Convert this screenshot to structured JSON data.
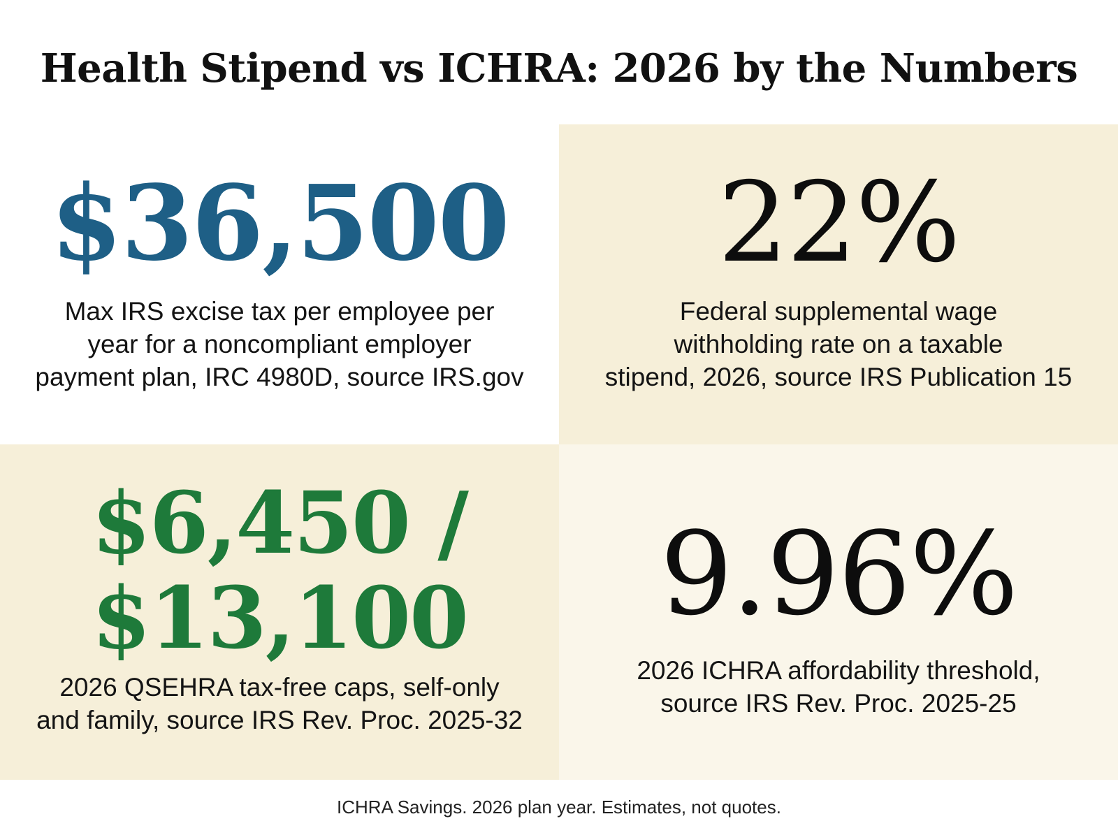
{
  "title": "Health Stipend vs ICHRA: 2026 by the Numbers",
  "stats": [
    {
      "value": "$36,500",
      "description": "Max IRS excise tax per employee per\nyear for a noncompliant employer\npayment plan, IRC 4980D, source IRS.gov",
      "color": "#1e5f86"
    },
    {
      "value": "22%",
      "description": "Federal supplemental wage\nwithholding rate on a taxable\nstipend, 2026, source IRS Publication 15",
      "color": "#0d0d0d"
    },
    {
      "value_line1": "$6,450 /",
      "value_line2": "$13,100",
      "description": "2026 QSEHRA tax-free caps, self-only\nand family, source IRS Rev. Proc. 2025-32",
      "color": "#1e7a3a"
    },
    {
      "value": "9.96%",
      "description": "2026 ICHRA affordability threshold,\nsource IRS Rev. Proc. 2025-25",
      "color": "#0d0d0d"
    }
  ],
  "footer": "ICHRA Savings. 2026 plan year. Estimates, not quotes."
}
